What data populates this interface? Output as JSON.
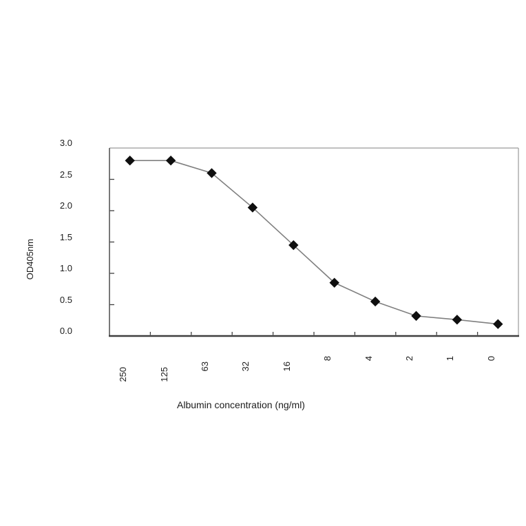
{
  "figure": {
    "background": "#ffffff",
    "text_color": "#1c1c1c"
  },
  "chart_data": {
    "type": "line",
    "title": "",
    "xlabel": "Albumin concentration (ng/ml)",
    "ylabel": "OD405nm",
    "categories": [
      "250",
      "125",
      "63",
      "32",
      "16",
      "8",
      "4",
      "2",
      "1",
      "0"
    ],
    "series": [
      {
        "name": "OD405nm",
        "values": [
          2.8,
          2.8,
          2.6,
          2.05,
          1.45,
          0.85,
          0.55,
          0.32,
          0.26,
          0.19
        ]
      }
    ],
    "ylim": [
      0.0,
      3.0
    ],
    "y_tick_step": 0.5,
    "y_tick_labels": [
      "0.0",
      "0.5",
      "1.0",
      "1.5",
      "2.0",
      "2.5",
      "3.0"
    ],
    "x_axis_style": "category, tick marks between categories, labels rotated 90",
    "grid": false,
    "legend": "none",
    "marker": "diamond",
    "colors": {
      "marker": "#0f0f0f",
      "line": "#7f7f7f",
      "axis": "#3f3f3f",
      "frame": "#9a9a9a"
    }
  }
}
